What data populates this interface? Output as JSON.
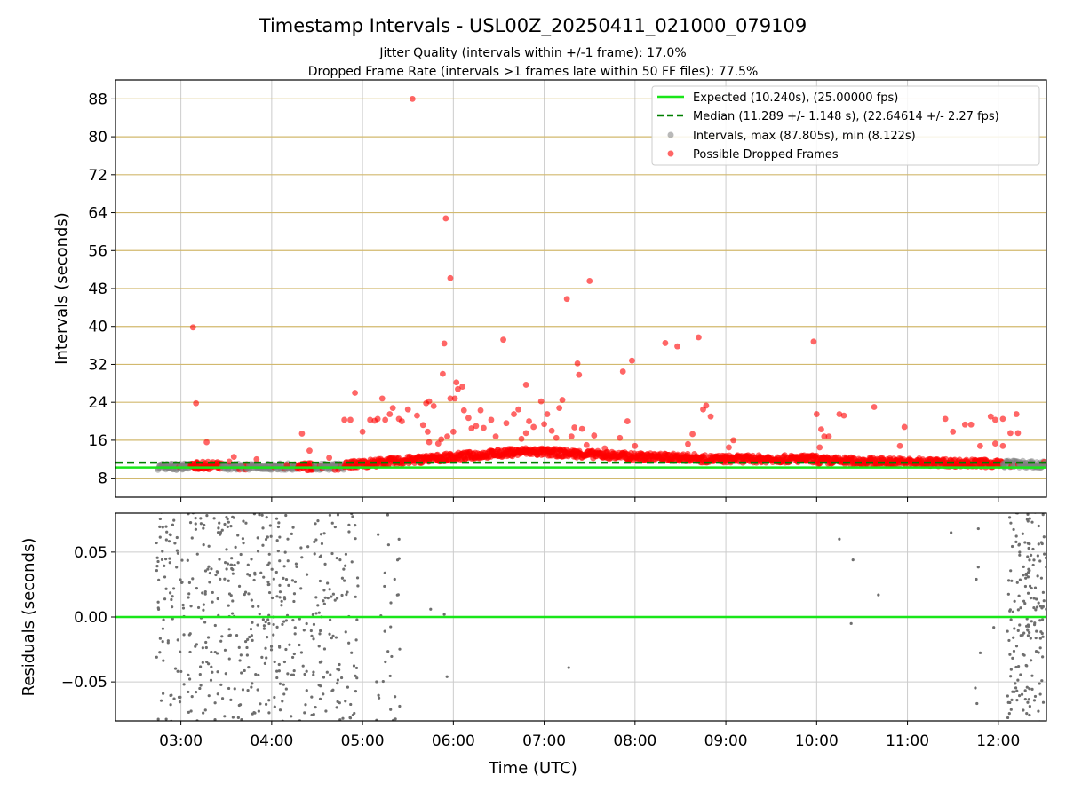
{
  "title": "Timestamp Intervals - USL00Z_20250411_021000_079109",
  "subtitle_1": "Jitter Quality (intervals within +/-1 frame): 17.0%",
  "subtitle_2": "Dropped Frame Rate (intervals >1 frames late within 50 FF files): 77.5%",
  "colors": {
    "expected": "#19e619",
    "median": "#008000",
    "intervals": "#808080",
    "dropped": "#ff0000",
    "hgrid_top": "#d2b96e",
    "grid": "#cccccc"
  },
  "chart_data": [
    {
      "type": "scatter",
      "xlabel": "",
      "ylabel": "Intervals (seconds)",
      "xlim_hours": [
        2.28,
        12.53
      ],
      "ylim": [
        4,
        92
      ],
      "yticks": [
        "8",
        "16",
        "24",
        "32",
        "40",
        "48",
        "56",
        "64",
        "72",
        "80",
        "88"
      ],
      "grid": "on",
      "legend_position": "upper right",
      "legend": [
        "Expected (10.240s), (25.00000 fps)",
        "Median (11.289 +/- 1.148 s), (22.64614 +/- 2.27 fps)",
        "Intervals, max (87.805s), min (8.122s)",
        "Possible Dropped Frames"
      ],
      "expected_interval": 10.24,
      "median_interval": 11.289,
      "interval_max": 87.805,
      "interval_min": 8.122,
      "outliers": [
        {
          "t": "03:08",
          "y": 39.8
        },
        {
          "t": "03:10",
          "y": 23.8
        },
        {
          "t": "03:17",
          "y": 15.6
        },
        {
          "t": "03:32",
          "y": 11.5
        },
        {
          "t": "03:35",
          "y": 12.5
        },
        {
          "t": "03:50",
          "y": 12.0
        },
        {
          "t": "04:10",
          "y": 10.8
        },
        {
          "t": "04:20",
          "y": 17.4
        },
        {
          "t": "04:25",
          "y": 13.8
        },
        {
          "t": "04:38",
          "y": 12.3
        },
        {
          "t": "04:48",
          "y": 20.3
        },
        {
          "t": "04:52",
          "y": 20.3
        },
        {
          "t": "04:55",
          "y": 26.0
        },
        {
          "t": "05:00",
          "y": 17.8
        },
        {
          "t": "05:05",
          "y": 20.3
        },
        {
          "t": "05:08",
          "y": 20.1
        },
        {
          "t": "05:10",
          "y": 20.5
        },
        {
          "t": "05:13",
          "y": 24.8
        },
        {
          "t": "05:15",
          "y": 20.3
        },
        {
          "t": "05:18",
          "y": 21.5
        },
        {
          "t": "05:20",
          "y": 22.8
        },
        {
          "t": "05:24",
          "y": 20.5
        },
        {
          "t": "05:26",
          "y": 20.0
        },
        {
          "t": "05:30",
          "y": 22.5
        },
        {
          "t": "05:33",
          "y": 88.0
        },
        {
          "t": "05:36",
          "y": 21.2
        },
        {
          "t": "05:40",
          "y": 19.2
        },
        {
          "t": "05:42",
          "y": 23.8
        },
        {
          "t": "05:44",
          "y": 24.2
        },
        {
          "t": "05:47",
          "y": 23.2
        },
        {
          "t": "05:43",
          "y": 17.8
        },
        {
          "t": "05:50",
          "y": 15.3
        },
        {
          "t": "05:52",
          "y": 16.2
        },
        {
          "t": "05:44",
          "y": 15.6
        },
        {
          "t": "05:55",
          "y": 62.8
        },
        {
          "t": "05:58",
          "y": 24.8
        },
        {
          "t": "06:00",
          "y": 17.8
        },
        {
          "t": "05:56",
          "y": 16.8
        },
        {
          "t": "05:53",
          "y": 30.0
        },
        {
          "t": "05:54",
          "y": 36.4
        },
        {
          "t": "05:58",
          "y": 50.2
        },
        {
          "t": "06:01",
          "y": 24.8
        },
        {
          "t": "06:02",
          "y": 28.2
        },
        {
          "t": "06:03",
          "y": 26.8
        },
        {
          "t": "06:06",
          "y": 27.3
        },
        {
          "t": "06:07",
          "y": 22.3
        },
        {
          "t": "06:10",
          "y": 20.7
        },
        {
          "t": "06:12",
          "y": 18.5
        },
        {
          "t": "06:15",
          "y": 19.0
        },
        {
          "t": "06:20",
          "y": 18.6
        },
        {
          "t": "06:18",
          "y": 22.3
        },
        {
          "t": "06:25",
          "y": 20.3
        },
        {
          "t": "06:28",
          "y": 16.8
        },
        {
          "t": "06:33",
          "y": 37.2
        },
        {
          "t": "06:35",
          "y": 19.6
        },
        {
          "t": "06:40",
          "y": 21.5
        },
        {
          "t": "06:43",
          "y": 22.5
        },
        {
          "t": "06:45",
          "y": 16.3
        },
        {
          "t": "06:48",
          "y": 17.5
        },
        {
          "t": "06:50",
          "y": 20.0
        },
        {
          "t": "06:53",
          "y": 18.8
        },
        {
          "t": "06:48",
          "y": 27.7
        },
        {
          "t": "06:58",
          "y": 24.2
        },
        {
          "t": "07:00",
          "y": 19.4
        },
        {
          "t": "07:02",
          "y": 21.5
        },
        {
          "t": "07:05",
          "y": 18.0
        },
        {
          "t": "07:08",
          "y": 16.5
        },
        {
          "t": "07:10",
          "y": 22.8
        },
        {
          "t": "07:12",
          "y": 24.5
        },
        {
          "t": "07:15",
          "y": 45.8
        },
        {
          "t": "07:18",
          "y": 16.8
        },
        {
          "t": "07:20",
          "y": 18.7
        },
        {
          "t": "07:22",
          "y": 32.2
        },
        {
          "t": "07:23",
          "y": 29.8
        },
        {
          "t": "07:25",
          "y": 18.4
        },
        {
          "t": "07:28",
          "y": 15.0
        },
        {
          "t": "07:30",
          "y": 49.6
        },
        {
          "t": "07:33",
          "y": 17.0
        },
        {
          "t": "07:40",
          "y": 14.3
        },
        {
          "t": "07:50",
          "y": 16.5
        },
        {
          "t": "07:52",
          "y": 30.5
        },
        {
          "t": "07:55",
          "y": 20.0
        },
        {
          "t": "08:00",
          "y": 14.8
        },
        {
          "t": "07:58",
          "y": 32.8
        },
        {
          "t": "08:20",
          "y": 36.5
        },
        {
          "t": "08:28",
          "y": 35.8
        },
        {
          "t": "08:35",
          "y": 15.2
        },
        {
          "t": "08:38",
          "y": 17.3
        },
        {
          "t": "08:42",
          "y": 37.7
        },
        {
          "t": "08:45",
          "y": 22.5
        },
        {
          "t": "08:47",
          "y": 23.3
        },
        {
          "t": "08:50",
          "y": 21.0
        },
        {
          "t": "09:05",
          "y": 16.0
        },
        {
          "t": "09:02",
          "y": 14.5
        },
        {
          "t": "09:58",
          "y": 36.8
        },
        {
          "t": "10:00",
          "y": 21.5
        },
        {
          "t": "10:03",
          "y": 18.3
        },
        {
          "t": "10:05",
          "y": 16.8
        },
        {
          "t": "10:08",
          "y": 16.8
        },
        {
          "t": "10:02",
          "y": 14.5
        },
        {
          "t": "10:15",
          "y": 21.5
        },
        {
          "t": "10:18",
          "y": 21.2
        },
        {
          "t": "10:38",
          "y": 23.0
        },
        {
          "t": "10:58",
          "y": 18.8
        },
        {
          "t": "10:55",
          "y": 14.8
        },
        {
          "t": "11:25",
          "y": 20.5
        },
        {
          "t": "11:30",
          "y": 17.8
        },
        {
          "t": "11:38",
          "y": 19.3
        },
        {
          "t": "11:42",
          "y": 19.3
        },
        {
          "t": "11:48",
          "y": 14.8
        },
        {
          "t": "11:55",
          "y": 21.0
        },
        {
          "t": "11:58",
          "y": 20.3
        },
        {
          "t": "12:03",
          "y": 20.5
        },
        {
          "t": "11:58",
          "y": 15.3
        },
        {
          "t": "12:03",
          "y": 14.8
        },
        {
          "t": "12:08",
          "y": 17.5
        },
        {
          "t": "12:12",
          "y": 21.5
        },
        {
          "t": "12:13",
          "y": 17.5
        }
      ]
    },
    {
      "type": "scatter",
      "xlabel": "Time (UTC)",
      "ylabel": "Residuals (seconds)",
      "xticks": [
        "03:00",
        "04:00",
        "05:00",
        "06:00",
        "07:00",
        "08:00",
        "09:00",
        "10:00",
        "11:00",
        "12:00"
      ],
      "yticks": [
        "0.05",
        "0.00",
        "−0.05"
      ],
      "ylim": [
        -0.08,
        0.08
      ],
      "grid": "on",
      "zero_line": 0.0
    }
  ]
}
